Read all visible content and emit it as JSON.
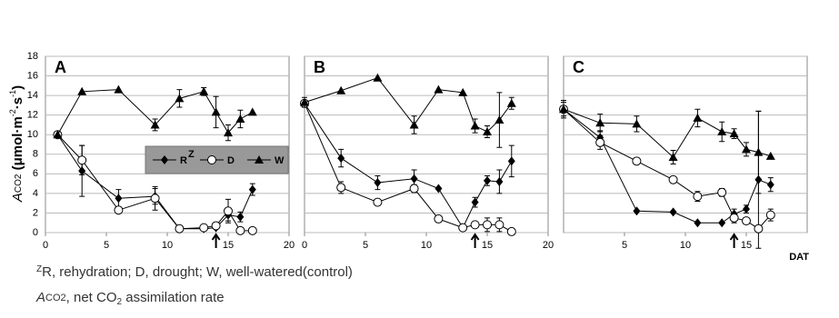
{
  "chart_data": [
    {
      "type": "line",
      "panel": "A",
      "xlim": [
        0,
        20
      ],
      "xticks": [
        0,
        5,
        10,
        15,
        20
      ],
      "ylim": [
        0,
        18
      ],
      "yticks": [
        0,
        2,
        4,
        6,
        8,
        10,
        12,
        14,
        16,
        18
      ],
      "show_yticks": true,
      "grid": true,
      "legend": true,
      "legend_superscript": "Z",
      "arrow_x": 14,
      "y_label": [
        "A",
        "CO2",
        " (μmol·m",
        "-2",
        "·s",
        "-1",
        ")"
      ],
      "series": [
        {
          "name": "R",
          "color": "#000000",
          "marker": "diamond",
          "x": [
            1,
            3,
            6,
            9,
            11,
            13,
            14,
            15,
            16,
            17
          ],
          "values": [
            10,
            6.3,
            3.5,
            3.7,
            0.4,
            0.4,
            0.5,
            1.8,
            1.6,
            4.4
          ],
          "errors": [
            null,
            2.6,
            0.9,
            0.8,
            null,
            null,
            null,
            0.6,
            0.5,
            0.6
          ]
        },
        {
          "name": "D",
          "color": "#000000",
          "marker": "circle",
          "x": [
            1,
            3,
            6,
            9,
            11,
            13,
            14,
            15,
            16,
            17
          ],
          "values": [
            10,
            7.4,
            2.3,
            3.5,
            0.4,
            0.5,
            0.7,
            2.2,
            0.2,
            0.2
          ],
          "errors": [
            null,
            1.5,
            0.3,
            1.2,
            null,
            null,
            0.3,
            1.2,
            null,
            null
          ]
        },
        {
          "name": "W",
          "color": "#000000",
          "marker": "triangle",
          "x": [
            1,
            3,
            6,
            9,
            11,
            13,
            14,
            15,
            16,
            17
          ],
          "values": [
            10,
            14.4,
            14.6,
            11,
            13.7,
            14.4,
            12.3,
            10.2,
            11.6,
            12.3
          ],
          "errors": [
            null,
            null,
            null,
            0.6,
            0.9,
            0.4,
            1.6,
            0.8,
            0.9,
            null
          ]
        }
      ]
    },
    {
      "type": "line",
      "panel": "B",
      "xlim": [
        0,
        20
      ],
      "xticks": [
        0,
        5,
        10,
        15,
        20
      ],
      "ylim": [
        0,
        18
      ],
      "yticks": [
        0,
        2,
        4,
        6,
        8,
        10,
        12,
        14,
        16,
        18
      ],
      "show_yticks": false,
      "grid": true,
      "legend": false,
      "arrow_x": 14,
      "series": [
        {
          "name": "R",
          "color": "#000000",
          "marker": "diamond",
          "x": [
            0,
            3,
            6,
            9,
            11,
            13,
            14,
            15,
            16,
            17
          ],
          "values": [
            13.2,
            7.6,
            5.1,
            5.5,
            4.5,
            0.5,
            3.1,
            5.3,
            5.2,
            7.3
          ],
          "errors": [
            null,
            0.9,
            0.7,
            0.9,
            null,
            null,
            0.5,
            0.5,
            1.2,
            1.6
          ]
        },
        {
          "name": "D",
          "color": "#000000",
          "marker": "circle",
          "x": [
            0,
            3,
            6,
            9,
            11,
            13,
            14,
            15,
            16,
            17
          ],
          "values": [
            13.2,
            4.6,
            3.1,
            4.5,
            1.4,
            0.5,
            0.8,
            0.8,
            0.8,
            0.1
          ],
          "errors": [
            null,
            0.6,
            null,
            0.4,
            null,
            null,
            null,
            0.7,
            0.7,
            null
          ]
        },
        {
          "name": "W",
          "color": "#000000",
          "marker": "triangle",
          "x": [
            0,
            3,
            6,
            9,
            11,
            13,
            14,
            15,
            16,
            17
          ],
          "values": [
            13.3,
            14.5,
            15.8,
            11,
            14.6,
            14.3,
            10.9,
            10.3,
            11.5,
            13.2
          ],
          "errors": [
            0.5,
            null,
            null,
            0.9,
            null,
            null,
            0.7,
            0.6,
            2.8,
            0.6
          ]
        }
      ]
    },
    {
      "type": "line",
      "panel": "C",
      "xlim": [
        0,
        20
      ],
      "xticks": [
        5,
        10,
        15
      ],
      "ylim": [
        0,
        18
      ],
      "yticks": [
        0,
        2,
        4,
        6,
        8,
        10,
        12,
        14,
        16,
        18
      ],
      "show_yticks": false,
      "grid": true,
      "legend": false,
      "arrow_x": 14,
      "x_label": "DAT",
      "series": [
        {
          "name": "R",
          "color": "#000000",
          "marker": "diamond",
          "x": [
            0,
            3,
            6,
            9,
            11,
            13,
            14,
            15,
            16,
            17
          ],
          "values": [
            12.6,
            9.7,
            2.2,
            2.1,
            1.0,
            1.0,
            1.9,
            2.4,
            5.4,
            4.9
          ],
          "errors": [
            null,
            0.7,
            null,
            null,
            null,
            null,
            0.5,
            0.4,
            7,
            0.7
          ]
        },
        {
          "name": "D",
          "color": "#000000",
          "marker": "circle",
          "x": [
            0,
            3,
            6,
            9,
            11,
            13,
            14,
            15,
            16,
            17
          ],
          "values": [
            12.6,
            9.2,
            7.3,
            5.4,
            3.7,
            4.1,
            1.5,
            1.2,
            0.4,
            1.8
          ],
          "errors": [
            0.7,
            0.7,
            null,
            null,
            0.5,
            0.4,
            0.5,
            null,
            null,
            0.6
          ]
        },
        {
          "name": "W",
          "color": "#000000",
          "marker": "triangle",
          "x": [
            0,
            3,
            6,
            9,
            11,
            13,
            14,
            15,
            16,
            17
          ],
          "values": [
            12.6,
            11.2,
            11.1,
            7.7,
            11.7,
            10.3,
            10.1,
            8.5,
            8.2,
            7.8
          ],
          "errors": [
            0.9,
            0.9,
            0.8,
            0.7,
            0.9,
            1.0,
            0.5,
            0.7,
            4.2,
            null
          ]
        }
      ]
    }
  ],
  "notes": [
    [
      "Z",
      "R, rehydration; D, drought; W, well-watered(control)"
    ],
    [
      "A",
      "CO2",
      ", net CO",
      "2",
      " assimilation rate"
    ]
  ]
}
